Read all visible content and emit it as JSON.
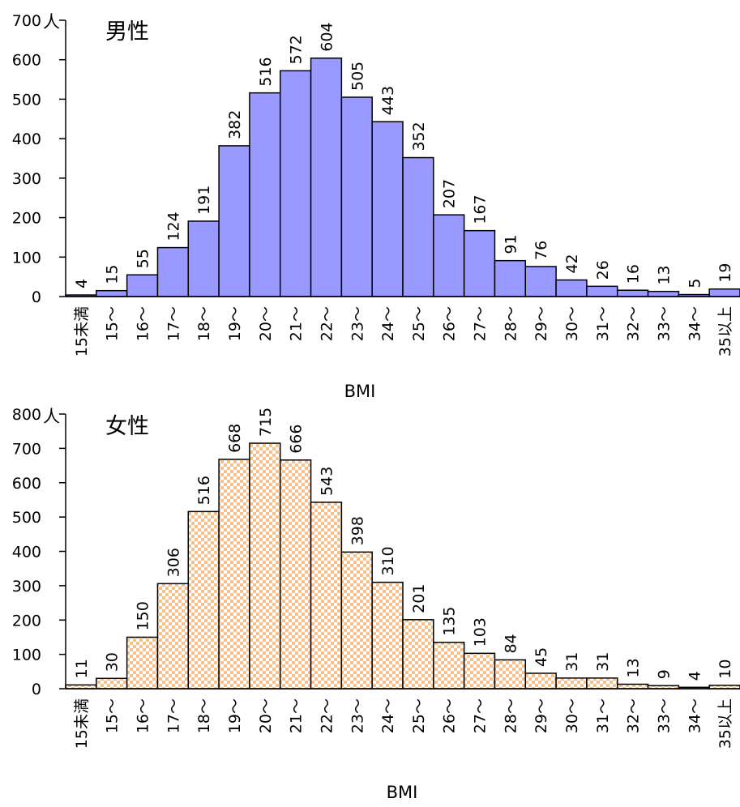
{
  "chart_data": [
    {
      "type": "bar",
      "title": "男性",
      "unit": "人",
      "xlabel": "BMI",
      "ylabel": "",
      "ylim": [
        0,
        700
      ],
      "yticks": [
        0,
        100,
        200,
        300,
        400,
        500,
        600,
        700
      ],
      "categories": [
        "15未満",
        "15～",
        "16～",
        "17～",
        "18～",
        "19～",
        "20～",
        "21～",
        "22～",
        "23～",
        "24～",
        "25～",
        "26～",
        "27～",
        "28～",
        "29～",
        "30～",
        "31～",
        "32～",
        "33～",
        "34～",
        "35以上"
      ],
      "values": [
        4,
        15,
        55,
        124,
        191,
        382,
        516,
        572,
        604,
        505,
        443,
        352,
        207,
        167,
        91,
        76,
        42,
        26,
        16,
        13,
        5,
        19
      ],
      "bar_color": "#9999FF",
      "fill_pattern": "solid",
      "grid": false,
      "legend": "none"
    },
    {
      "type": "bar",
      "title": "女性",
      "unit": "人",
      "xlabel": "BMI",
      "ylabel": "",
      "ylim": [
        0,
        800
      ],
      "yticks": [
        0,
        100,
        200,
        300,
        400,
        500,
        600,
        700,
        800
      ],
      "categories": [
        "15未満",
        "15～",
        "16～",
        "17～",
        "18～",
        "19～",
        "20～",
        "21～",
        "22～",
        "23～",
        "24～",
        "25～",
        "26～",
        "27～",
        "28～",
        "29～",
        "30～",
        "31～",
        "32～",
        "33～",
        "34～",
        "35以上"
      ],
      "values": [
        11,
        30,
        150,
        306,
        516,
        668,
        715,
        666,
        543,
        398,
        310,
        201,
        135,
        103,
        84,
        45,
        31,
        31,
        13,
        9,
        4,
        10
      ],
      "bar_color": "#FFCC99",
      "fill_pattern": "checkerboard",
      "grid": false,
      "legend": "none"
    }
  ]
}
